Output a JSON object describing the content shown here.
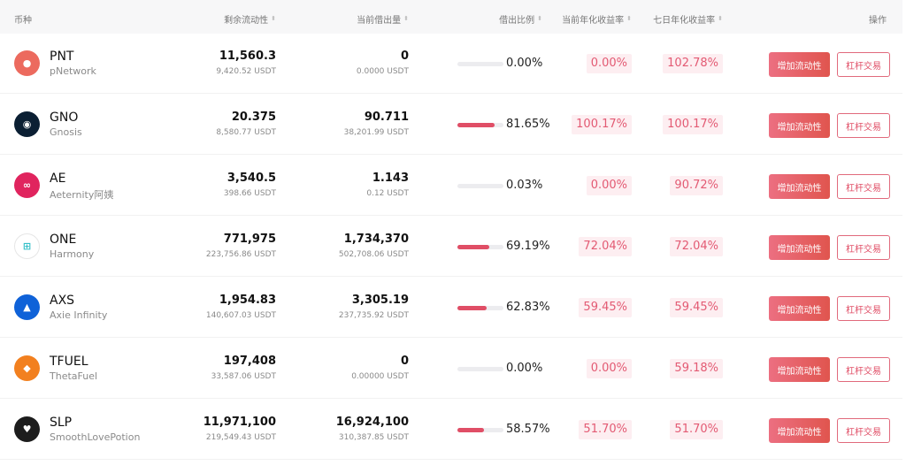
{
  "header": {
    "coin": "币种",
    "liquidity": "剩余流动性",
    "borrowed": "当前借出量",
    "ratio": "借出比例",
    "apr_current": "当前年化收益率",
    "apr_7d": "七日年化收益率",
    "action": "操作",
    "sort_icon": "sort-icon"
  },
  "colors": {
    "accent": "#e04e66",
    "apr_bg": "#fdeef1"
  },
  "rows": [
    {
      "symbol": "PNT",
      "name": "pNetwork",
      "icon": "pnetwork-icon",
      "icon_color": "#ec6a5e",
      "icon_glyph": "●",
      "liquidity": "11,560.3",
      "liquidity_usdt": "9,420.52 USDT",
      "borrowed": "0",
      "borrowed_usdt": "0.0000 USDT",
      "ratio_value": 0.0,
      "ratio": "0.00%",
      "apr_current": "0.00%",
      "apr_7d": "102.78%",
      "add_label": "增加流动性",
      "lev_label": "杠杆交易"
    },
    {
      "symbol": "GNO",
      "name": "Gnosis",
      "icon": "gnosis-icon",
      "icon_color": "#0b1f33",
      "icon_glyph": "◉",
      "liquidity": "20.375",
      "liquidity_usdt": "8,580.77 USDT",
      "borrowed": "90.711",
      "borrowed_usdt": "38,201.99 USDT",
      "ratio_value": 81.65,
      "ratio": "81.65%",
      "apr_current": "100.17%",
      "apr_7d": "100.17%",
      "add_label": "增加流动性",
      "lev_label": "杠杆交易"
    },
    {
      "symbol": "AE",
      "name": "Aeternity阿姨",
      "icon": "aeternity-icon",
      "icon_color": "#e0245e",
      "icon_glyph": "∞",
      "liquidity": "3,540.5",
      "liquidity_usdt": "398.66 USDT",
      "borrowed": "1.143",
      "borrowed_usdt": "0.12 USDT",
      "ratio_value": 0.03,
      "ratio": "0.03%",
      "apr_current": "0.00%",
      "apr_7d": "90.72%",
      "add_label": "增加流动性",
      "lev_label": "杠杆交易"
    },
    {
      "symbol": "ONE",
      "name": "Harmony",
      "icon": "harmony-icon",
      "icon_color": "#ffffff",
      "icon_glyph": "⊞",
      "liquidity": "771,975",
      "liquidity_usdt": "223,756.86 USDT",
      "borrowed": "1,734,370",
      "borrowed_usdt": "502,708.06 USDT",
      "ratio_value": 69.19,
      "ratio": "69.19%",
      "apr_current": "72.04%",
      "apr_7d": "72.04%",
      "add_label": "增加流动性",
      "lev_label": "杠杆交易"
    },
    {
      "symbol": "AXS",
      "name": "Axie Infinity",
      "icon": "axie-icon",
      "icon_color": "#0f62d8",
      "icon_glyph": "▲",
      "liquidity": "1,954.83",
      "liquidity_usdt": "140,607.03 USDT",
      "borrowed": "3,305.19",
      "borrowed_usdt": "237,735.92 USDT",
      "ratio_value": 62.83,
      "ratio": "62.83%",
      "apr_current": "59.45%",
      "apr_7d": "59.45%",
      "add_label": "增加流动性",
      "lev_label": "杠杆交易"
    },
    {
      "symbol": "TFUEL",
      "name": "ThetaFuel",
      "icon": "thetafuel-icon",
      "icon_color": "#f2801f",
      "icon_glyph": "◆",
      "liquidity": "197,408",
      "liquidity_usdt": "33,587.06 USDT",
      "borrowed": "0",
      "borrowed_usdt": "0.00000 USDT",
      "ratio_value": 0.0,
      "ratio": "0.00%",
      "apr_current": "0.00%",
      "apr_7d": "59.18%",
      "add_label": "增加流动性",
      "lev_label": "杠杆交易"
    },
    {
      "symbol": "SLP",
      "name": "SmoothLovePotion",
      "icon": "slp-icon",
      "icon_color": "#1d1d1d",
      "icon_glyph": "♥",
      "liquidity": "11,971,100",
      "liquidity_usdt": "219,549.43 USDT",
      "borrowed": "16,924,100",
      "borrowed_usdt": "310,387.85 USDT",
      "ratio_value": 58.57,
      "ratio": "58.57%",
      "apr_current": "51.70%",
      "apr_7d": "51.70%",
      "add_label": "增加流动性",
      "lev_label": "杠杆交易"
    }
  ]
}
